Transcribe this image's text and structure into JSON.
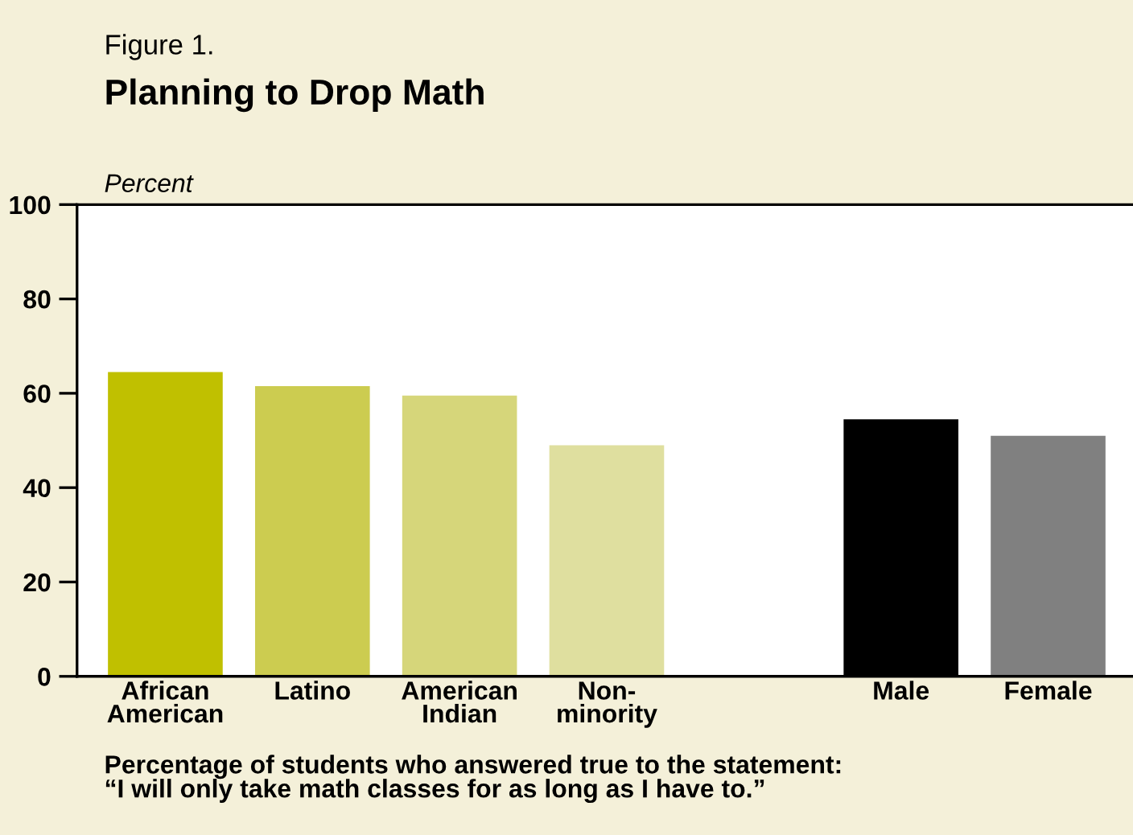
{
  "chart_data": {
    "type": "bar",
    "subtitle": "Figure 1.",
    "title": "Planning to Drop Math",
    "ylabel": "Percent",
    "categories": [
      "African\nAmerican",
      "Latino",
      "American\nIndian",
      "Non-\nminority",
      null,
      "Male",
      "Female"
    ],
    "values": [
      64.5,
      61.5,
      59.5,
      49,
      null,
      54.5,
      51
    ],
    "colors": [
      "#c0c000",
      "#cccc50",
      "#d6d67a",
      "#dfdf9f",
      "#ffffff",
      "#000000",
      "#808080"
    ],
    "ylim": [
      0,
      100
    ],
    "yticks": [
      0,
      20,
      40,
      60,
      80,
      100
    ],
    "grid": false,
    "legend": false,
    "annotations": [
      "Percentage of students who answered true to the statement:\n“I will only take math classes for as long as I have to.”"
    ]
  }
}
